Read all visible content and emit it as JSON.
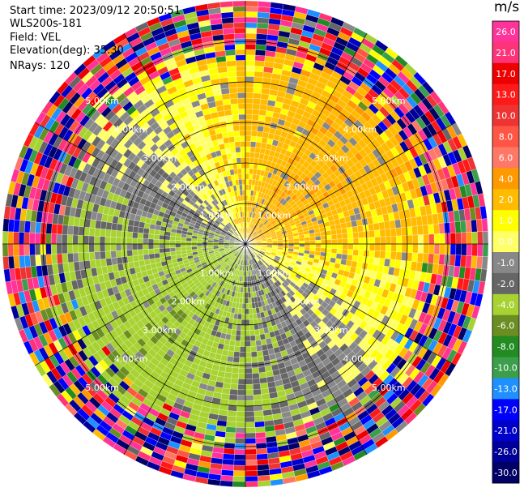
{
  "info": {
    "start_time": "Start time: 2023/09/12 20:50:51",
    "instrument": "WLS200s-181",
    "field": "Field: VEL",
    "elevation": "Elevation(deg): 35.30",
    "nrays": "NRays: 120"
  },
  "chart_data": {
    "type": "heatmap",
    "projection": "polar-ppi",
    "field": "VEL",
    "units": "m/s",
    "n_rays": 120,
    "n_gates": 45,
    "max_range_km": 6.0,
    "range_rings_km": [
      1.0,
      2.0,
      3.0,
      4.0,
      5.0
    ],
    "ring_label_text": [
      "1.00km",
      "2.00km",
      "3.00km",
      "4.00km",
      "5.00km"
    ],
    "spoke_bearings_deg": [
      0,
      30,
      60,
      90,
      120,
      150,
      180,
      210,
      240,
      270,
      300,
      330
    ],
    "ring_label_bearings_deg": [
      315,
      45,
      135,
      225
    ],
    "colorbar": {
      "ticks": [
        "26.0",
        "21.0",
        "17.0",
        "13.0",
        "10.0",
        "8.0",
        "6.0",
        "4.0",
        "2.0",
        "1.0",
        "0.0",
        "-1.0",
        "-2.0",
        "-4.0",
        "-6.0",
        "-8.0",
        "-10.0",
        "-13.0",
        "-17.0",
        "-21.0",
        "-26.0",
        "-30.0"
      ],
      "segments": [
        {
          "lo": 26,
          "hi": 30,
          "color": "#ff3399"
        },
        {
          "lo": 21,
          "hi": 26,
          "color": "#ff3377"
        },
        {
          "lo": 17,
          "hi": 21,
          "color": "#ee0000"
        },
        {
          "lo": 13,
          "hi": 17,
          "color": "#ff1a1a"
        },
        {
          "lo": 10,
          "hi": 13,
          "color": "#ee3333"
        },
        {
          "lo": 8,
          "hi": 10,
          "color": "#ff5544"
        },
        {
          "lo": 6,
          "hi": 8,
          "color": "#ff7766"
        },
        {
          "lo": 4,
          "hi": 6,
          "color": "#ff9900"
        },
        {
          "lo": 2,
          "hi": 4,
          "color": "#ffbb00"
        },
        {
          "lo": 1,
          "hi": 2,
          "color": "#ffff00"
        },
        {
          "lo": 0,
          "hi": 1,
          "color": "#ffff66"
        },
        {
          "lo": -1,
          "hi": 0,
          "color": "#888888"
        },
        {
          "lo": -2,
          "hi": -1,
          "color": "#666666"
        },
        {
          "lo": -4,
          "hi": -2,
          "color": "#a7d232"
        },
        {
          "lo": -6,
          "hi": -4,
          "color": "#6b8e23"
        },
        {
          "lo": -8,
          "hi": -6,
          "color": "#228b22"
        },
        {
          "lo": -10,
          "hi": -8,
          "color": "#3a9e4a"
        },
        {
          "lo": -13,
          "hi": -10,
          "color": "#1e90ff"
        },
        {
          "lo": -17,
          "hi": -13,
          "color": "#0000ff"
        },
        {
          "lo": -21,
          "hi": -17,
          "color": "#0000cc"
        },
        {
          "lo": -26,
          "hi": -21,
          "color": "#000099"
        },
        {
          "lo": -30,
          "hi": -26,
          "color": "#000066"
        }
      ]
    },
    "field_summary": {
      "near_range_approaching_sector": "south-west (greens, about -1 to -8 m/s)",
      "near_range_receding_sector": "north-east (yellows, about 1 to 4 m/s)",
      "far_range": "noisy, mixed colours across the full scale beyond about 4.5 km"
    }
  }
}
